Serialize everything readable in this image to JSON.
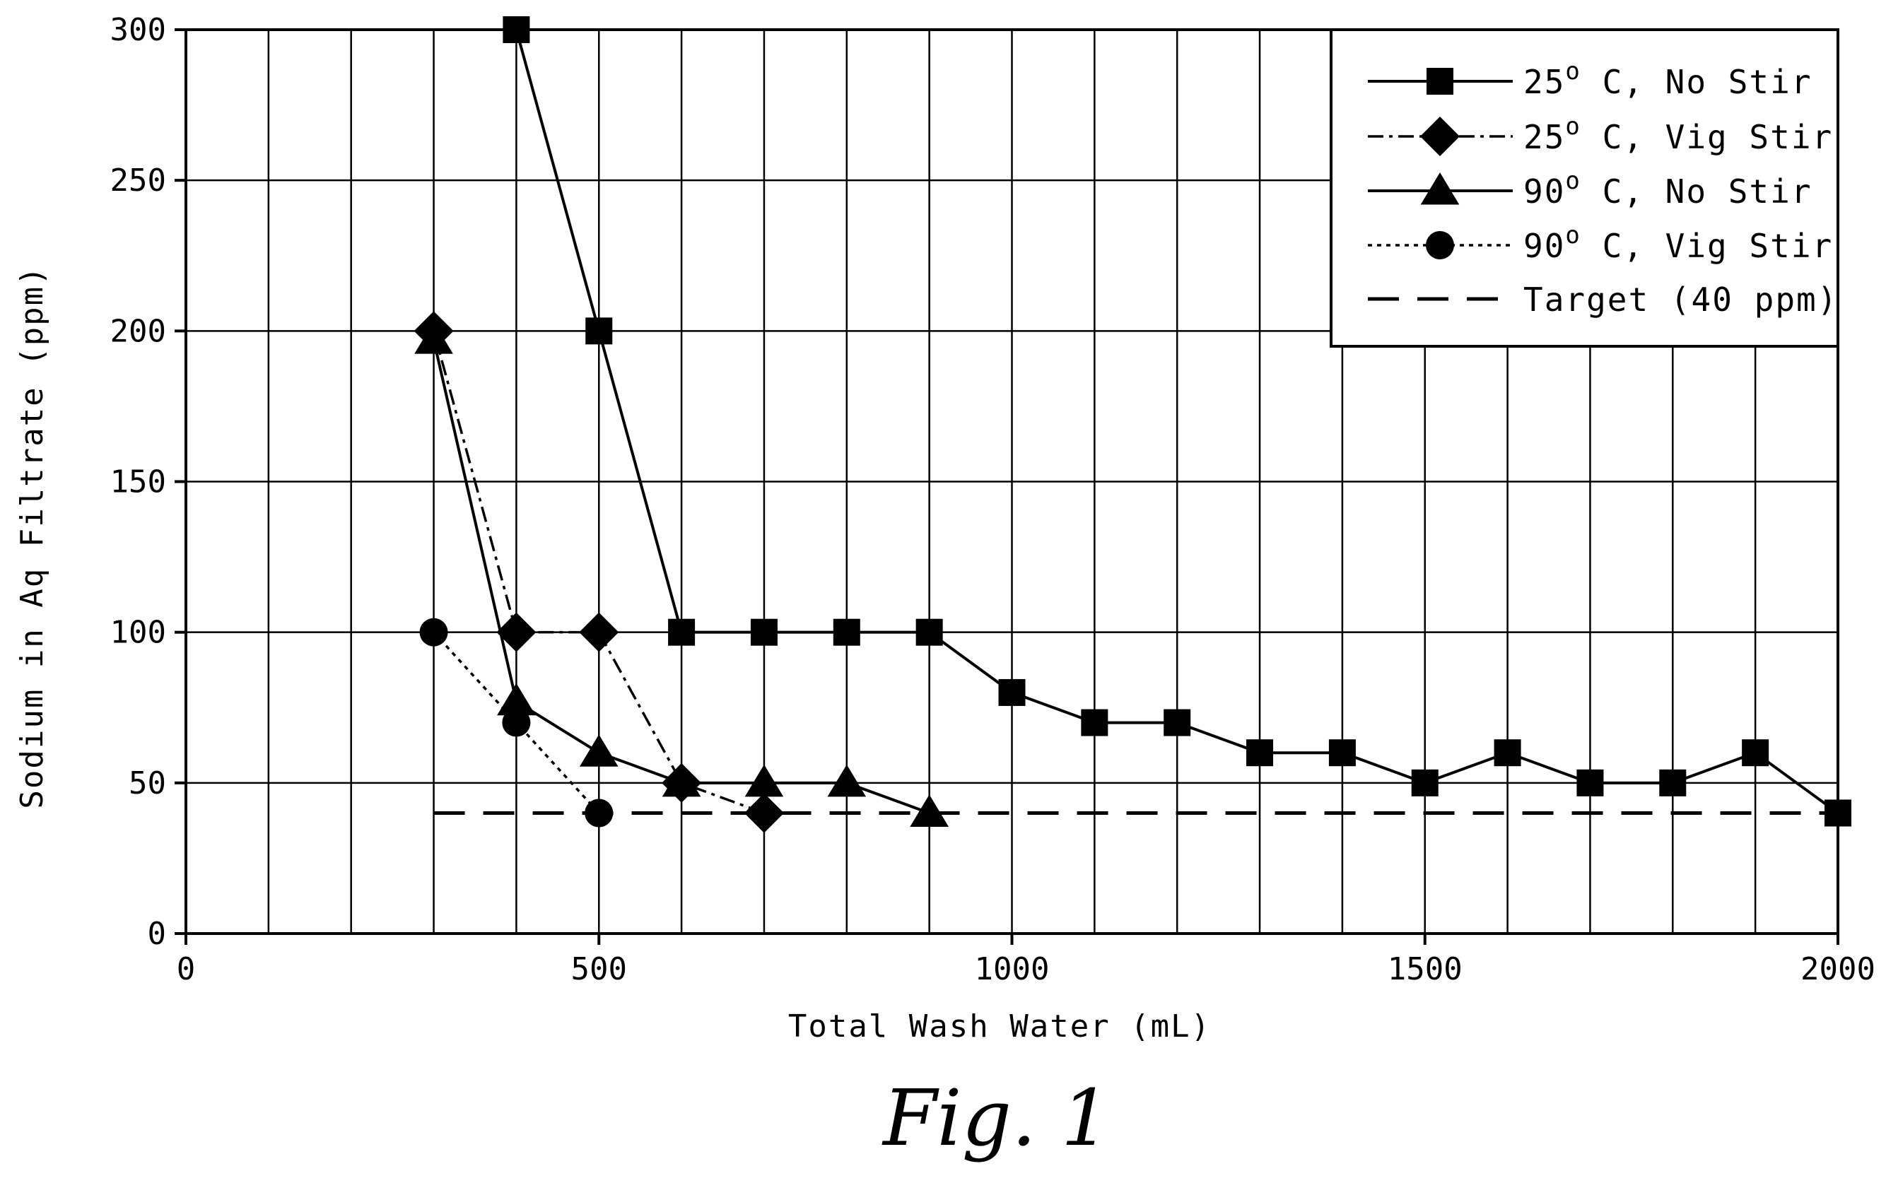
{
  "chart_data": {
    "type": "line",
    "xlabel": "Total Wash Water (mL)",
    "ylabel": "Sodium in Aq Filtrate (ppm)",
    "xlim": [
      0,
      2000
    ],
    "ylim": [
      0,
      300
    ],
    "xticks": [
      "0",
      "500",
      "1000",
      "1500",
      "2000"
    ],
    "yticks": [
      "0",
      "50",
      "100",
      "150",
      "200",
      "250",
      "300"
    ],
    "grid": true,
    "legend_position": "top-right",
    "series": [
      {
        "name": "25° C, No Stir",
        "legend_base": "25",
        "legend_suffix": " C, No Stir",
        "marker": "square",
        "line": "solid",
        "x": [
          400,
          500,
          600,
          700,
          800,
          900,
          1000,
          1100,
          1200,
          1300,
          1400,
          1500,
          1600,
          1700,
          1800,
          1900,
          2000
        ],
        "y": [
          300,
          200,
          100,
          100,
          100,
          100,
          80,
          70,
          70,
          60,
          60,
          50,
          60,
          50,
          50,
          60,
          40
        ]
      },
      {
        "name": "25° C, Vig Stir",
        "legend_base": "25",
        "legend_suffix": " C, Vig Stir",
        "marker": "diamond",
        "line": "dashdot",
        "x": [
          300,
          400,
          500,
          600,
          700
        ],
        "y": [
          200,
          100,
          100,
          50,
          40
        ]
      },
      {
        "name": "90° C, No Stir",
        "legend_base": "90",
        "legend_suffix": " C, No Stir",
        "marker": "triangle",
        "line": "solid",
        "x": [
          300,
          400,
          500,
          600,
          700,
          800,
          900
        ],
        "y": [
          197,
          77,
          60,
          50,
          50,
          50,
          40
        ]
      },
      {
        "name": "90° C, Vig Stir",
        "legend_base": "90",
        "legend_suffix": " C, Vig Stir",
        "marker": "circle",
        "line": "dotted",
        "x": [
          300,
          400,
          500
        ],
        "y": [
          100,
          70,
          40
        ]
      },
      {
        "name": "Target (40 ppm)",
        "legend_text": "Target (40 ppm)",
        "marker": "none",
        "line": "dashed",
        "x": [
          300,
          2000
        ],
        "y": [
          40,
          40
        ]
      }
    ]
  },
  "caption": "Fig. 1"
}
